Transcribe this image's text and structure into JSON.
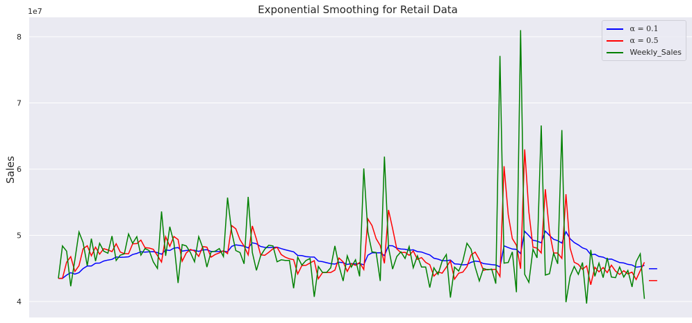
{
  "chart_data": {
    "type": "line",
    "title": "Exponential Smoothing for Retail Data",
    "xlabel": "",
    "ylabel": "Sales",
    "y_offset_text": "1e7",
    "y_scale": 10000000,
    "ylim": [
      3.75,
      8.3
    ],
    "yticks": [
      4,
      5,
      6,
      7,
      8
    ],
    "ytick_labels": [
      "4",
      "5",
      "6",
      "7",
      "8"
    ],
    "grid": true,
    "legend_position": "top-right",
    "colors": {
      "alpha_01": "#0000ff",
      "alpha_05": "#ff0000",
      "weekly_sales": "#008000",
      "background": "#eaeaf2",
      "grid": "#ffffff"
    },
    "series": [
      {
        "name": "α = 0.1",
        "legend_label": "α = 0.1",
        "type": "simple_exponential_smoothing_fit",
        "alpha": 0.1,
        "forecast_steps": 2
      },
      {
        "name": "α = 0.5",
        "legend_label": "α = 0.5",
        "type": "simple_exponential_smoothing_fit",
        "alpha": 0.5,
        "forecast_steps": 2
      },
      {
        "name": "Weekly_Sales",
        "legend_label": "Weekly_Sales",
        "type": "observed",
        "values": [
          4.35,
          4.84,
          4.76,
          4.23,
          4.63,
          5.05,
          4.89,
          4.54,
          4.95,
          4.61,
          4.88,
          4.76,
          4.73,
          4.99,
          4.62,
          4.7,
          4.72,
          5.02,
          4.88,
          4.98,
          4.7,
          4.8,
          4.77,
          4.6,
          4.5,
          5.36,
          4.69,
          5.13,
          4.89,
          4.28,
          4.86,
          4.84,
          4.74,
          4.6,
          4.98,
          4.81,
          4.52,
          4.75,
          4.76,
          4.8,
          4.68,
          5.57,
          5.05,
          4.77,
          4.74,
          4.57,
          5.58,
          4.74,
          4.47,
          4.69,
          4.79,
          4.85,
          4.84,
          4.6,
          4.63,
          4.62,
          4.62,
          4.2,
          4.67,
          4.55,
          4.62,
          4.65,
          4.07,
          4.53,
          4.44,
          4.44,
          4.51,
          4.84,
          4.54,
          4.31,
          4.69,
          4.52,
          4.63,
          4.38,
          6.01,
          5.05,
          4.75,
          4.74,
          4.31,
          6.19,
          4.82,
          4.49,
          4.68,
          4.75,
          4.65,
          4.83,
          4.51,
          4.69,
          4.52,
          4.52,
          4.21,
          4.51,
          4.41,
          4.61,
          4.71,
          4.06,
          4.52,
          4.46,
          4.61,
          4.88,
          4.79,
          4.52,
          4.31,
          4.5,
          4.48,
          4.49,
          4.27,
          7.71,
          4.58,
          4.59,
          4.75,
          4.14,
          8.1,
          4.41,
          4.29,
          4.79,
          4.66,
          6.66,
          4.4,
          4.42,
          4.73,
          4.57,
          6.59,
          3.99,
          4.38,
          4.53,
          4.41,
          4.59,
          3.97,
          4.78,
          4.38,
          4.58,
          4.36,
          4.66,
          4.37,
          4.36,
          4.52,
          4.37,
          4.47,
          4.22,
          4.6,
          4.72,
          4.04
        ]
      }
    ]
  }
}
